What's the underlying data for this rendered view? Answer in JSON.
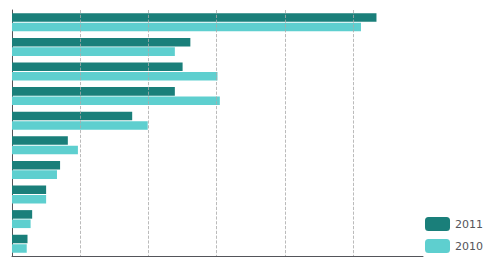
{
  "chart_data": {
    "type": "bar",
    "orientation": "horizontal",
    "categories": [
      null,
      null,
      null,
      null,
      null,
      null,
      null,
      null,
      null,
      null
    ],
    "series": [
      {
        "name": "2011",
        "color": "#1a7f7a",
        "values": [
          470,
          230,
          220,
          210,
          155,
          72,
          62,
          44,
          26,
          20
        ]
      },
      {
        "name": "2010",
        "color": "#5ecfcf",
        "values": [
          450,
          210,
          265,
          268,
          175,
          85,
          58,
          44,
          24,
          19
        ]
      }
    ],
    "xlim": [
      0,
      530
    ],
    "xticks": [
      88,
      176,
      264,
      352,
      440
    ],
    "grid": true,
    "legend": "lower right",
    "tick_labels": false
  }
}
